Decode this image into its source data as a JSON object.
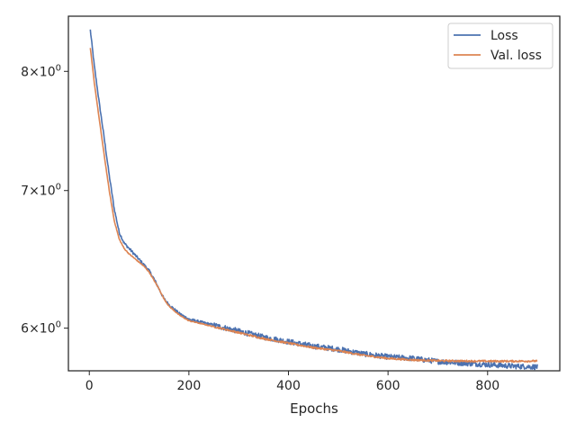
{
  "chart_data": {
    "type": "line",
    "title": "",
    "xlabel": "Epochs",
    "ylabel": "",
    "xlim": [
      -42,
      945
    ],
    "ylim": [
      5.72,
      8.51
    ],
    "yscale": "log",
    "grid": false,
    "legend_position": "top-right",
    "xticks": [
      0,
      200,
      400,
      600,
      800
    ],
    "xtick_labels": [
      "0",
      "200",
      "400",
      "600",
      "800"
    ],
    "yticks": [
      6,
      7,
      8
    ],
    "ytick_labels": [
      {
        "mantissa": "6",
        "sep": "×",
        "base": "10",
        "exp": "0"
      },
      {
        "mantissa": "7",
        "sep": "×",
        "base": "10",
        "exp": "0"
      },
      {
        "mantissa": "8",
        "sep": "×",
        "base": "10",
        "exp": "0"
      }
    ],
    "series": [
      {
        "name": "Loss",
        "color": "#4c72b0",
        "noise": 0.006,
        "x": [
          2,
          10,
          20,
          30,
          40,
          50,
          60,
          70,
          80,
          90,
          100,
          110,
          120,
          130,
          140,
          150,
          160,
          170,
          180,
          190,
          200,
          225,
          250,
          275,
          300,
          350,
          400,
          450,
          500,
          550,
          600,
          650,
          700,
          750,
          800,
          850,
          900
        ],
        "y": [
          8.38,
          8.05,
          7.72,
          7.42,
          7.12,
          6.86,
          6.68,
          6.6,
          6.56,
          6.52,
          6.48,
          6.44,
          6.4,
          6.34,
          6.27,
          6.2,
          6.16,
          6.13,
          6.1,
          6.08,
          6.06,
          6.04,
          6.02,
          6.0,
          5.98,
          5.94,
          5.91,
          5.88,
          5.86,
          5.83,
          5.81,
          5.8,
          5.78,
          5.77,
          5.76,
          5.75,
          5.745
        ]
      },
      {
        "name": "Val. loss",
        "color": "#dd8452",
        "noise": 0.002,
        "x": [
          2,
          10,
          20,
          30,
          40,
          50,
          60,
          70,
          80,
          90,
          100,
          110,
          120,
          130,
          140,
          150,
          160,
          170,
          180,
          190,
          200,
          225,
          250,
          275,
          300,
          350,
          400,
          450,
          500,
          550,
          600,
          650,
          700,
          750,
          800,
          850,
          900
        ],
        "y": [
          8.21,
          7.9,
          7.58,
          7.28,
          7.0,
          6.77,
          6.63,
          6.56,
          6.52,
          6.49,
          6.46,
          6.43,
          6.39,
          6.33,
          6.27,
          6.2,
          6.15,
          6.12,
          6.09,
          6.07,
          6.05,
          6.03,
          6.01,
          5.99,
          5.97,
          5.93,
          5.9,
          5.87,
          5.85,
          5.82,
          5.8,
          5.79,
          5.785,
          5.783,
          5.782,
          5.782,
          5.783
        ]
      }
    ]
  }
}
